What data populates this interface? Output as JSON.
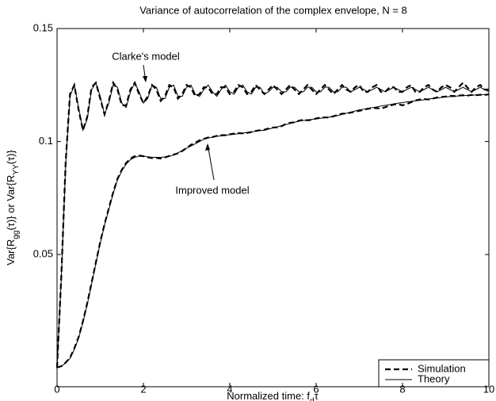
{
  "chart_data": {
    "type": "line",
    "title": "Variance of autocorrelation of the complex envelope,  N = 8",
    "xlabel": [
      "Normalized time: f",
      "d",
      "τ"
    ],
    "ylabel": [
      "Var{R",
      "gg",
      "(τ)}  or  Var{R",
      "YY",
      "(τ)}"
    ],
    "xlim": [
      0,
      10
    ],
    "ylim": [
      -0.0085,
      0.15
    ],
    "xticks": [
      0,
      2,
      4,
      6,
      8,
      10
    ],
    "yticks": [
      0.05,
      0.1,
      0.15
    ],
    "grid": false,
    "legend_corner": "lower right",
    "legend": [
      {
        "name": "Simulation",
        "dash": true
      },
      {
        "name": "Theory",
        "dash": false
      }
    ],
    "annotations": [
      "Clarke's model",
      "Improved model"
    ],
    "x": [
      0,
      0.1,
      0.2,
      0.3,
      0.4,
      0.5,
      0.6,
      0.7,
      0.8,
      0.9,
      1,
      1.1,
      1.2,
      1.3,
      1.4,
      1.5,
      1.6,
      1.7,
      1.8,
      1.9,
      2,
      2.1,
      2.2,
      2.3,
      2.4,
      2.5,
      2.6,
      2.7,
      2.8,
      2.9,
      3,
      3.1,
      3.2,
      3.3,
      3.4,
      3.5,
      3.6,
      3.7,
      3.8,
      3.9,
      4,
      4.1,
      4.2,
      4.3,
      4.4,
      4.5,
      4.6,
      4.7,
      4.8,
      4.9,
      5,
      5.1,
      5.2,
      5.3,
      5.4,
      5.5,
      5.6,
      5.7,
      5.8,
      5.9,
      6,
      6.1,
      6.2,
      6.3,
      6.4,
      6.5,
      6.6,
      6.7,
      6.8,
      6.9,
      7,
      7.1,
      7.2,
      7.3,
      7.4,
      7.5,
      7.6,
      7.7,
      7.8,
      7.9,
      8,
      8.1,
      8.2,
      8.3,
      8.4,
      8.5,
      8.6,
      8.7,
      8.8,
      8.9,
      9,
      9.1,
      9.2,
      9.3,
      9.4,
      9.5,
      9.6,
      9.7,
      9.8,
      9.9,
      10
    ],
    "series": [
      {
        "color": "#000000",
        "dash": false,
        "values": [
          0,
          0.04,
          0.09,
          0.12,
          0.125,
          0.115,
          0.105,
          0.11,
          0.123,
          0.126,
          0.12,
          0.112,
          0.117,
          0.125,
          0.124,
          0.117,
          0.115,
          0.122,
          0.126,
          0.122,
          0.117,
          0.119,
          0.125,
          0.124,
          0.119,
          0.119,
          0.124,
          0.125,
          0.12,
          0.12,
          0.124,
          0.125,
          0.121,
          0.12,
          0.123,
          0.125,
          0.122,
          0.12,
          0.123,
          0.125,
          0.122,
          0.121,
          0.124,
          0.125,
          0.122,
          0.121,
          0.124,
          0.124,
          0.121,
          0.122,
          0.124,
          0.124,
          0.122,
          0.122,
          0.124,
          0.124,
          0.122,
          0.122,
          0.124,
          0.124,
          0.122,
          0.122,
          0.124,
          0.124,
          0.122,
          0.122,
          0.124,
          0.124,
          0.122,
          0.123,
          0.124,
          0.123,
          0.122,
          0.123,
          0.124,
          0.123,
          0.122,
          0.123,
          0.124,
          0.123,
          0.122,
          0.123,
          0.124,
          0.123,
          0.122,
          0.123,
          0.124,
          0.123,
          0.122,
          0.123,
          0.124,
          0.123,
          0.122,
          0.123,
          0.124,
          0.123,
          0.122,
          0.123,
          0.124,
          0.123,
          0.122
        ]
      },
      {
        "color": "#000000",
        "dash": true,
        "values": [
          0,
          0.041,
          0.091,
          0.121,
          0.125,
          0.114,
          0.105,
          0.111,
          0.124,
          0.126,
          0.119,
          0.112,
          0.118,
          0.126,
          0.123,
          0.116,
          0.116,
          0.123,
          0.126,
          0.121,
          0.117,
          0.12,
          0.125,
          0.123,
          0.118,
          0.12,
          0.125,
          0.124,
          0.119,
          0.121,
          0.125,
          0.124,
          0.12,
          0.121,
          0.124,
          0.124,
          0.121,
          0.121,
          0.124,
          0.124,
          0.121,
          0.122,
          0.125,
          0.124,
          0.121,
          0.122,
          0.125,
          0.123,
          0.121,
          0.123,
          0.125,
          0.123,
          0.121,
          0.123,
          0.125,
          0.123,
          0.121,
          0.123,
          0.125,
          0.123,
          0.121,
          0.123,
          0.125,
          0.123,
          0.121,
          0.123,
          0.125,
          0.123,
          0.122,
          0.124,
          0.125,
          0.122,
          0.122,
          0.124,
          0.125,
          0.122,
          0.122,
          0.124,
          0.124,
          0.122,
          0.122,
          0.124,
          0.125,
          0.122,
          0.122,
          0.124,
          0.125,
          0.123,
          0.122,
          0.124,
          0.125,
          0.124,
          0.122,
          0.124,
          0.126,
          0.124,
          0.122,
          0.124,
          0.125,
          0.123,
          0.123
        ]
      },
      {
        "color": "#000000",
        "dash": false,
        "values": [
          0,
          0.0005,
          0.002,
          0.004,
          0.008,
          0.013,
          0.02,
          0.028,
          0.037,
          0.046,
          0.055,
          0.063,
          0.07,
          0.077,
          0.083,
          0.087,
          0.09,
          0.092,
          0.093,
          0.0935,
          0.0935,
          0.0933,
          0.093,
          0.093,
          0.093,
          0.0932,
          0.0935,
          0.094,
          0.095,
          0.096,
          0.097,
          0.098,
          0.099,
          0.1,
          0.101,
          0.1015,
          0.102,
          0.1023,
          0.1025,
          0.1028,
          0.103,
          0.1032,
          0.1035,
          0.1037,
          0.104,
          0.1043,
          0.1045,
          0.1048,
          0.105,
          0.1055,
          0.106,
          0.1065,
          0.107,
          0.1075,
          0.108,
          0.1085,
          0.109,
          0.1093,
          0.1095,
          0.1098,
          0.11,
          0.1103,
          0.1105,
          0.1108,
          0.111,
          0.1115,
          0.112,
          0.1125,
          0.113,
          0.1135,
          0.114,
          0.1143,
          0.1147,
          0.115,
          0.1153,
          0.1157,
          0.116,
          0.1163,
          0.1167,
          0.117,
          0.1172,
          0.1175,
          0.1178,
          0.118,
          0.1182,
          0.1185,
          0.1188,
          0.119,
          0.1192,
          0.1195,
          0.1197,
          0.1199,
          0.12,
          0.1202,
          0.1203,
          0.1204,
          0.1205,
          0.1206,
          0.1207,
          0.1208,
          0.121
        ]
      },
      {
        "color": "#000000",
        "dash": true,
        "values": [
          0,
          0.0006,
          0.0022,
          0.0043,
          0.0085,
          0.0135,
          0.0205,
          0.0285,
          0.0375,
          0.0465,
          0.0555,
          0.0635,
          0.0705,
          0.0775,
          0.0835,
          0.0875,
          0.0905,
          0.0925,
          0.0935,
          0.0938,
          0.0935,
          0.093,
          0.0927,
          0.0928,
          0.0925,
          0.093,
          0.0936,
          0.0942,
          0.0948,
          0.0958,
          0.0972,
          0.0985,
          0.0995,
          0.1005,
          0.1012,
          0.1018,
          0.102,
          0.1025,
          0.1028,
          0.1028,
          0.1032,
          0.1035,
          0.1037,
          0.1036,
          0.1038,
          0.1042,
          0.1047,
          0.105,
          0.1052,
          0.1058,
          0.1062,
          0.1063,
          0.1068,
          0.1078,
          0.1083,
          0.1085,
          0.1092,
          0.1096,
          0.1094,
          0.1096,
          0.1102,
          0.1106,
          0.1107,
          0.1106,
          0.1112,
          0.1118,
          0.1123,
          0.1124,
          0.1128,
          0.1132,
          0.1136,
          0.114,
          0.1145,
          0.1148,
          0.1148,
          0.1145,
          0.1152,
          0.1158,
          0.1164,
          0.1166,
          0.116,
          0.1166,
          0.1174,
          0.1182,
          0.1186,
          0.1188,
          0.1186,
          0.119,
          0.1195,
          0.1197,
          0.1199,
          0.1202,
          0.1201,
          0.1203,
          0.1205,
          0.1203,
          0.1206,
          0.1205,
          0.1207,
          0.1206,
          0.1209
        ]
      }
    ]
  }
}
